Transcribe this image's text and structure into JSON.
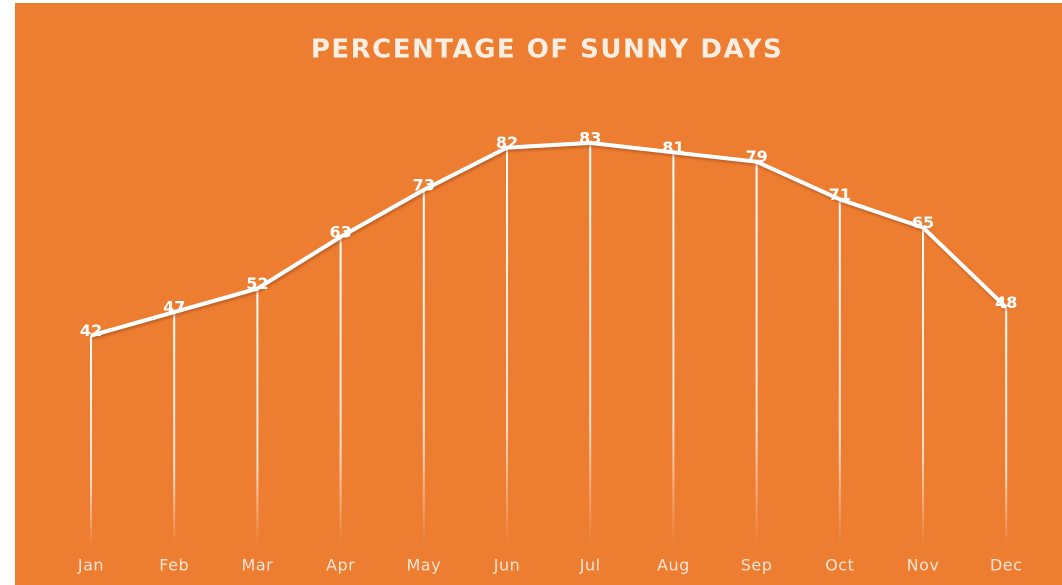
{
  "chart_data": {
    "type": "line",
    "title": "PERCENTAGE OF SUNNY DAYS",
    "categories": [
      "Jan",
      "Feb",
      "Mar",
      "Apr",
      "May",
      "Jun",
      "Jul",
      "Aug",
      "Sep",
      "Oct",
      "Nov",
      "Dec"
    ],
    "values": [
      42,
      47,
      52,
      63,
      73,
      82,
      83,
      81,
      79,
      71,
      65,
      48
    ],
    "color": "#ffffff",
    "background": "#ed7d31",
    "drop_lines": true,
    "ylim": [
      0,
      90
    ]
  }
}
